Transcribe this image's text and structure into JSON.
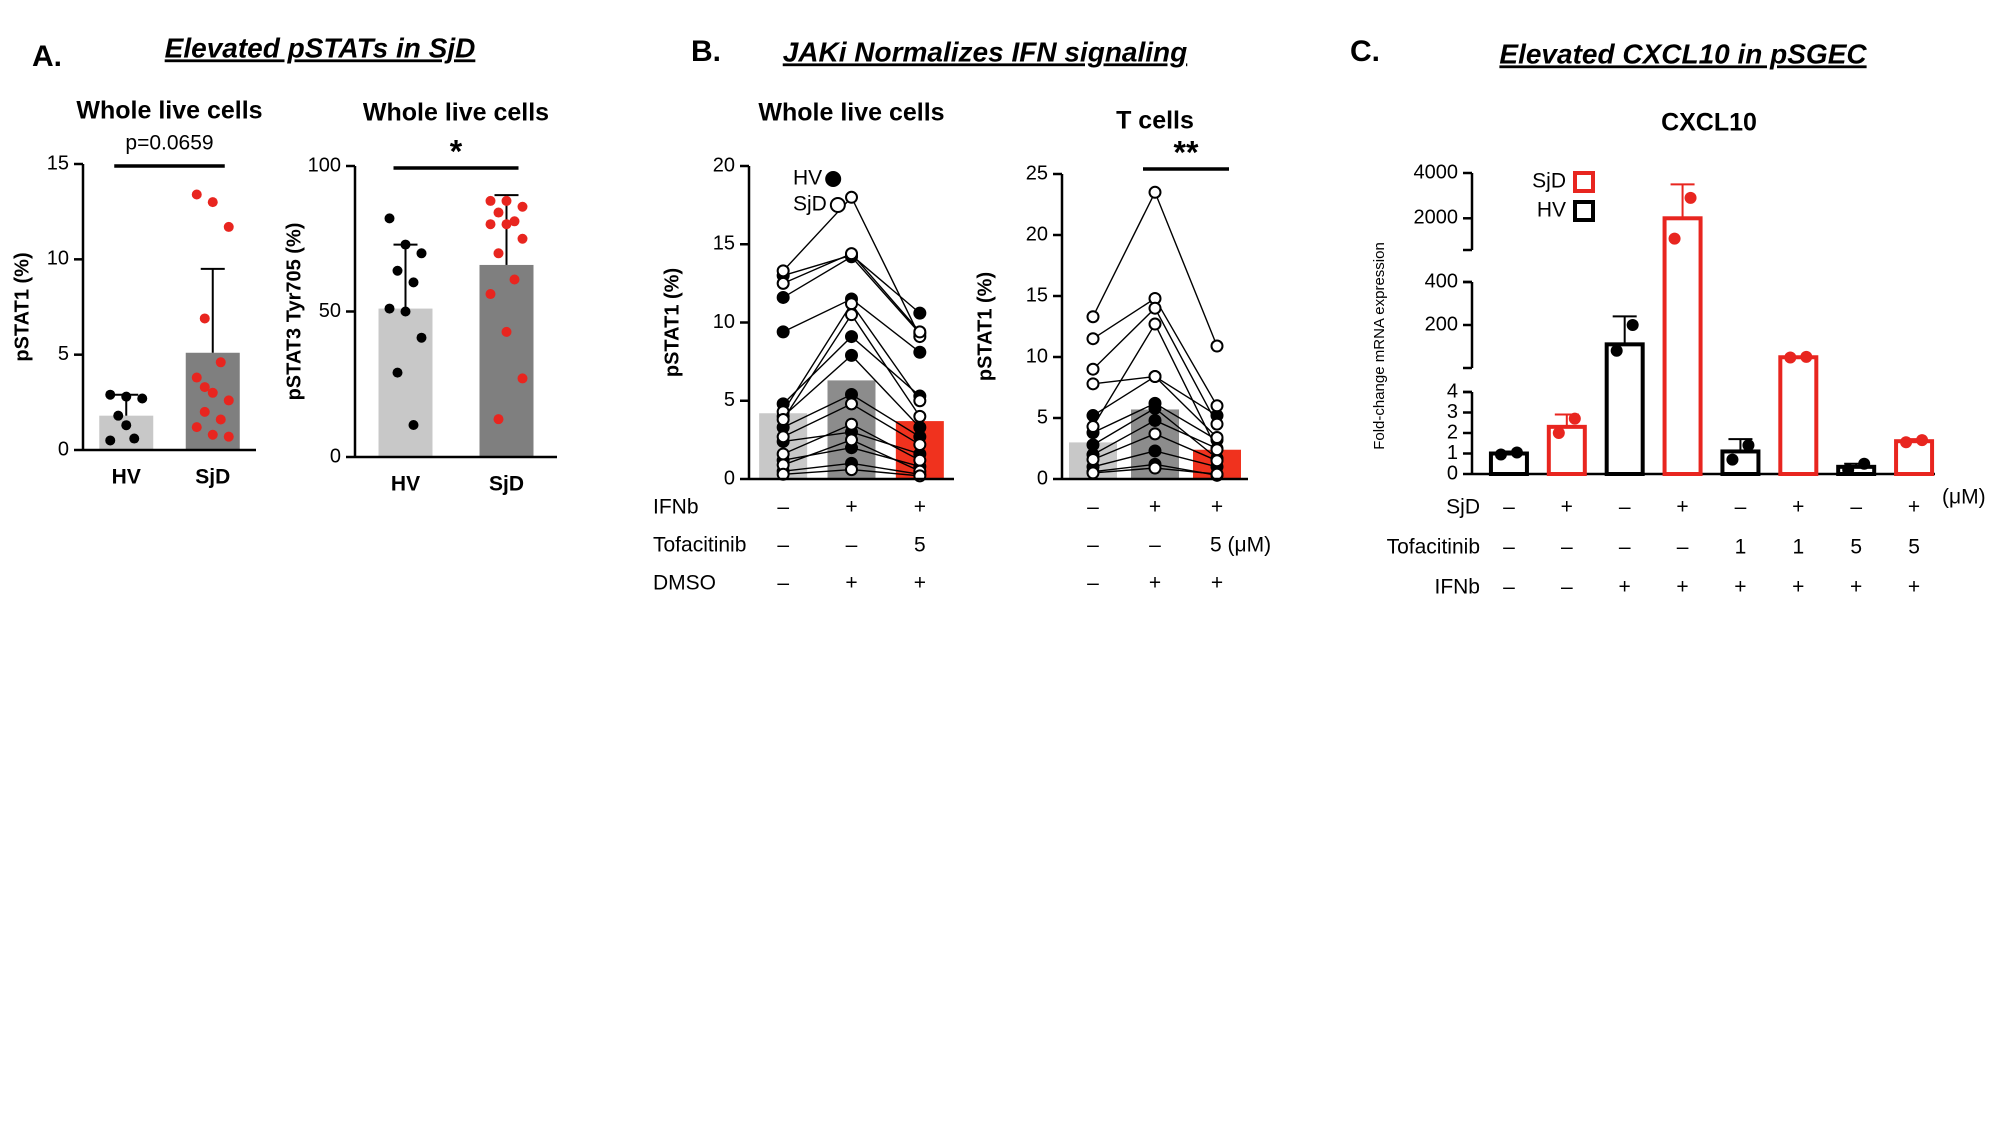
{
  "panels": [
    {
      "label": "A.",
      "heading": "Elevated pSTATs in SjD"
    },
    {
      "label": "B.",
      "heading": "JAKi Normalizes IFN signaling"
    },
    {
      "label": "C.",
      "heading": "Elevated CXCL10 in pSGEC"
    }
  ],
  "chart_data": [
    {
      "type": "bar",
      "title": "Whole live cells",
      "ylabel": "pSTAT1 (%)",
      "categories": [
        "HV",
        "SjD"
      ],
      "values": [
        1.8,
        5.1
      ],
      "errors": [
        1.1,
        4.4
      ],
      "colors": [
        "#c8c8c8",
        "#7f7f7f"
      ],
      "points": [
        [
          2.9,
          2.8,
          2.7,
          1.8,
          0.6,
          0.5,
          1.3
        ],
        [
          13.4,
          13.0,
          11.7,
          6.9,
          4.6,
          3.8,
          3.0,
          2.6,
          2.0,
          1.6,
          1.2,
          0.8,
          0.7,
          3.3
        ]
      ],
      "point_colors": [
        "#000000",
        "#e8251f"
      ],
      "ylim": [
        0,
        15
      ],
      "yticks": [
        0,
        5,
        10,
        15
      ],
      "annotation": "p=0.0659",
      "bracket": [
        0,
        1
      ]
    },
    {
      "type": "bar",
      "title": "Whole live cells",
      "ylabel": "pSTAT3 Tyr705 (%)",
      "categories": [
        "HV",
        "SjD"
      ],
      "values": [
        51,
        66
      ],
      "errors": [
        22,
        24
      ],
      "colors": [
        "#c8c8c8",
        "#7f7f7f"
      ],
      "points": [
        [
          82,
          73,
          70,
          64,
          60,
          51,
          50,
          41,
          29,
          11
        ],
        [
          88,
          88,
          86,
          84,
          81,
          80,
          80,
          75,
          70,
          61,
          56,
          43,
          27,
          13
        ]
      ],
      "point_colors": [
        "#000000",
        "#e8251f"
      ],
      "ylim": [
        0,
        100
      ],
      "yticks": [
        0,
        50,
        100
      ],
      "annotation": "*",
      "bracket": [
        0,
        1
      ]
    },
    {
      "type": "paired",
      "title": "Whole live cells",
      "ylabel": "pSTAT1 (%)",
      "values": [
        4.2,
        6.3,
        3.7
      ],
      "colors": [
        "#c8c8c8",
        "#8c8c8c",
        "#f0321e"
      ],
      "ylim": [
        0,
        20
      ],
      "yticks": [
        0,
        5,
        10,
        15,
        20
      ],
      "legend": "upper left",
      "series": [
        {
          "name": "HV",
          "marker": "filled",
          "subjects": [
            [
              13.0,
              14.3,
              10.6
            ],
            [
              11.6,
              14.2,
              9.3
            ],
            [
              9.4,
              11.5,
              8.1
            ],
            [
              4.8,
              9.1,
              5.3
            ],
            [
              4.0,
              7.9,
              3.3
            ],
            [
              3.3,
              5.4,
              2.7
            ],
            [
              2.4,
              3.0,
              1.6
            ],
            [
              1.2,
              2.0,
              0.8
            ],
            [
              0.5,
              1.0,
              0.3
            ]
          ]
        },
        {
          "name": "SjD",
          "marker": "open",
          "subjects": [
            [
              13.3,
              18.0,
              9.1
            ],
            [
              12.5,
              14.4,
              9.4
            ],
            [
              4.3,
              11.2,
              5.0
            ],
            [
              3.8,
              10.5,
              4.0
            ],
            [
              2.7,
              4.8,
              2.2
            ],
            [
              1.6,
              3.5,
              1.2
            ],
            [
              0.9,
              2.5,
              0.5
            ],
            [
              0.3,
              0.6,
              0.2
            ]
          ]
        }
      ],
      "rows": [
        {
          "label": "IFNb",
          "values": [
            "–",
            "+",
            "+"
          ]
        },
        {
          "label": "Tofacitinib",
          "values": [
            "–",
            "–",
            "5"
          ]
        },
        {
          "label": "DMSO",
          "values": [
            "–",
            "+",
            "+"
          ]
        }
      ]
    },
    {
      "type": "paired",
      "title": "T cells",
      "ylabel": "pSTAT1 (%)",
      "values": [
        3.0,
        5.7,
        2.4
      ],
      "colors": [
        "#c8c8c8",
        "#8c8c8c",
        "#f0321e"
      ],
      "ylim": [
        0,
        25
      ],
      "yticks": [
        0,
        5,
        10,
        15,
        20,
        25
      ],
      "annotation": "**",
      "bracket": [
        1,
        2
      ],
      "series": [
        {
          "name": "HV",
          "marker": "filled",
          "subjects": [
            [
              5.2,
              8.4,
              5.2
            ],
            [
              3.8,
              6.2,
              3.2
            ],
            [
              2.0,
              4.8,
              2.5
            ],
            [
              1.0,
              2.3,
              1.0
            ],
            [
              0.6,
              1.2,
              0.3
            ],
            [
              2.8,
              5.8,
              1.7
            ]
          ]
        },
        {
          "name": "SjD",
          "marker": "open",
          "subjects": [
            [
              13.3,
              23.5,
              10.9
            ],
            [
              11.5,
              14.8,
              6.0
            ],
            [
              9.0,
              14.0,
              4.5
            ],
            [
              7.8,
              8.4,
              3.4
            ],
            [
              4.3,
              12.7,
              2.4
            ],
            [
              1.6,
              3.7,
              1.5
            ],
            [
              0.5,
              0.9,
              0.4
            ]
          ]
        }
      ],
      "rows": [
        {
          "values": [
            "–",
            "+",
            "+"
          ]
        },
        {
          "values": [
            "–",
            "–",
            "5 (μM)"
          ]
        },
        {
          "values": [
            "–",
            "+",
            "+"
          ]
        }
      ]
    },
    {
      "type": "brokenbar",
      "title": "CXCL10",
      "ylabel": "Fold-change mRNA expression",
      "values": [
        1.0,
        2.3,
        110,
        2000,
        1.1,
        50,
        0.35,
        1.6
      ],
      "errors": [
        0.1,
        0.6,
        130,
        1500,
        0.6,
        3,
        0.15,
        0.1
      ],
      "points": [
        [
          0.95,
          1.05
        ],
        [
          2.0,
          2.7
        ],
        [
          80,
          200
        ],
        [
          1100,
          2900
        ],
        [
          0.7,
          1.4
        ],
        [
          49,
          52
        ],
        [
          0.2,
          0.5
        ],
        [
          1.55,
          1.65
        ]
      ],
      "colors": [
        "#000000",
        "#e8251f",
        "#000000",
        "#e8251f",
        "#000000",
        "#e8251f",
        "#000000",
        "#e8251f"
      ],
      "segments": [
        {
          "ylim": [
            0,
            4
          ],
          "yticks": [
            0,
            1,
            2,
            3,
            4
          ]
        },
        {
          "ylim": [
            0,
            400
          ],
          "yticks": [
            200,
            400
          ]
        },
        {
          "ylim": [
            600,
            4000
          ],
          "yticks": [
            2000,
            4000
          ]
        }
      ],
      "legend": [
        {
          "name": "SjD",
          "color": "#e8251f"
        },
        {
          "name": "HV",
          "color": "#000000"
        }
      ],
      "rows": [
        {
          "label": "SjD",
          "values": [
            "–",
            "+",
            "–",
            "+",
            "–",
            "+",
            "–",
            "+"
          ]
        },
        {
          "label": "Tofacitinib",
          "values": [
            "–",
            "–",
            "–",
            "–",
            "1",
            "1",
            "5",
            "5"
          ]
        },
        {
          "label": "IFNb",
          "values": [
            "–",
            "–",
            "+",
            "+",
            "+",
            "+",
            "+",
            "+"
          ]
        }
      ],
      "unit": "(μM)"
    }
  ]
}
